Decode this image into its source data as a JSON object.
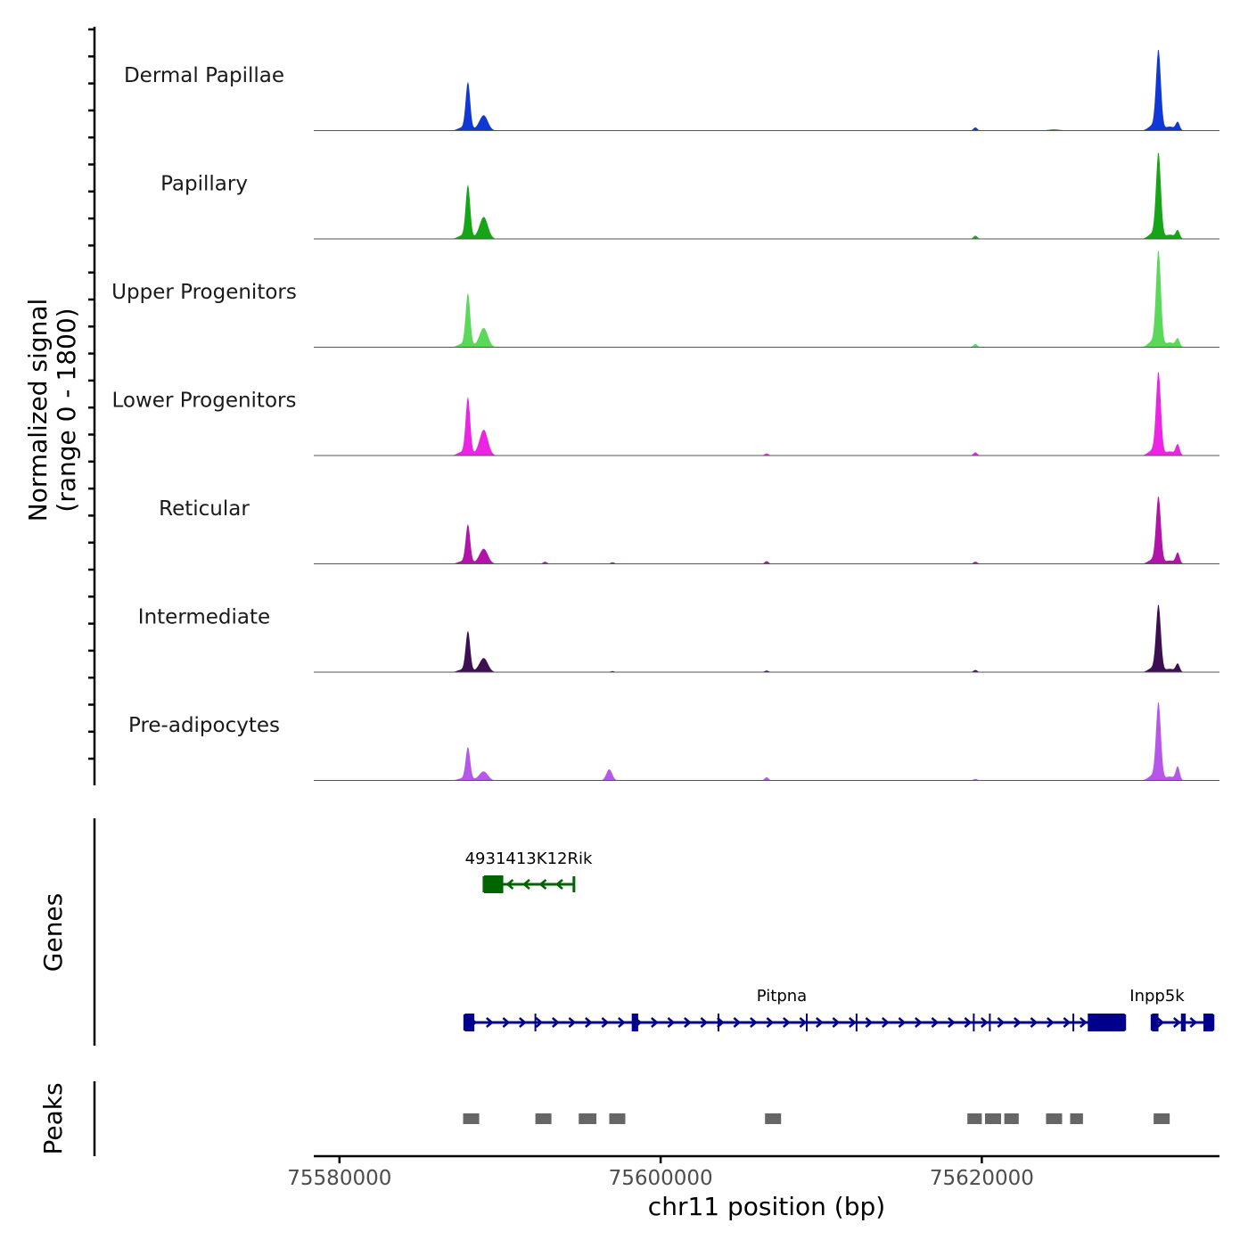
{
  "chart_data": {
    "type": "area",
    "title": "",
    "chromosome": "chr11",
    "xlabel": "chr11 position (bp)",
    "ylabel_line1": "Normalized signal",
    "ylabel_line2": "(range 0 - 1800)",
    "y_range": [
      0,
      1800
    ],
    "xlim": [
      75578400,
      75634800
    ],
    "x_ticks": [
      75580000,
      75600000,
      75620000
    ],
    "x_tick_labels": [
      "75580000",
      "75600000",
      "75620000"
    ],
    "baseline_color": "#555555",
    "tracks": [
      {
        "name": "Dermal Papillae",
        "color": "#1038d6",
        "peaks": [
          [
            75588000,
            900,
            140
          ],
          [
            75589000,
            260,
            250
          ],
          [
            75619600,
            60,
            120
          ],
          [
            75624500,
            20,
            400
          ],
          [
            75631000,
            1500,
            150
          ],
          [
            75632200,
            150,
            120
          ]
        ]
      },
      {
        "name": "Papillary",
        "color": "#16a516",
        "peaks": [
          [
            75588000,
            1000,
            140
          ],
          [
            75589000,
            380,
            250
          ],
          [
            75619600,
            60,
            120
          ],
          [
            75631000,
            1600,
            150
          ],
          [
            75632200,
            150,
            120
          ]
        ]
      },
      {
        "name": "Upper Progenitors",
        "color": "#5ad85a",
        "peaks": [
          [
            75588000,
            1000,
            140
          ],
          [
            75589000,
            330,
            250
          ],
          [
            75619600,
            60,
            120
          ],
          [
            75631000,
            1800,
            150
          ],
          [
            75632200,
            150,
            120
          ]
        ]
      },
      {
        "name": "Lower Progenitors",
        "color": "#ec24e4",
        "peaks": [
          [
            75588000,
            1080,
            140
          ],
          [
            75589000,
            450,
            250
          ],
          [
            75606600,
            40,
            120
          ],
          [
            75619600,
            60,
            120
          ],
          [
            75631000,
            1550,
            150
          ],
          [
            75632200,
            200,
            120
          ]
        ]
      },
      {
        "name": "Reticular",
        "color": "#b213a8",
        "peaks": [
          [
            75588000,
            730,
            140
          ],
          [
            75589000,
            260,
            250
          ],
          [
            75592800,
            40,
            120
          ],
          [
            75597000,
            30,
            120
          ],
          [
            75606600,
            50,
            120
          ],
          [
            75619600,
            40,
            120
          ],
          [
            75631000,
            1250,
            150
          ],
          [
            75632200,
            200,
            120
          ]
        ]
      },
      {
        "name": "Intermediate",
        "color": "#3b0f52",
        "peaks": [
          [
            75588000,
            760,
            140
          ],
          [
            75589000,
            240,
            250
          ],
          [
            75597000,
            20,
            120
          ],
          [
            75606600,
            30,
            120
          ],
          [
            75619600,
            40,
            120
          ],
          [
            75631000,
            1250,
            150
          ],
          [
            75632200,
            150,
            120
          ]
        ]
      },
      {
        "name": "Pre-adipocytes",
        "color": "#b657ea",
        "peaks": [
          [
            75588000,
            620,
            140
          ],
          [
            75589000,
            150,
            250
          ],
          [
            75596800,
            210,
            180
          ],
          [
            75606600,
            60,
            120
          ],
          [
            75619600,
            30,
            120
          ],
          [
            75631000,
            1450,
            150
          ],
          [
            75632200,
            250,
            120
          ]
        ]
      }
    ],
    "genes_label": "Genes",
    "genes": [
      {
        "name": "4931413K12Rik",
        "strand": "-",
        "color": "#006400",
        "start": 75589000,
        "end": 75594600,
        "exons": [
          [
            75589000,
            75590200
          ]
        ]
      },
      {
        "name": "Pitpna",
        "strand": "+",
        "color": "#00008b",
        "start": 75587800,
        "end": 75628900,
        "exons": [
          [
            75587800,
            75588400
          ],
          [
            75598200,
            75598600
          ],
          [
            75626600,
            75628900
          ]
        ],
        "introns_marks": [
          75592200,
          75603600,
          75609100,
          75612200,
          75619500,
          75620500,
          75625700
        ]
      },
      {
        "name": "Inpp5k",
        "strand": "+",
        "color": "#00008b",
        "start": 75630600,
        "end": 75634400,
        "exons": [
          [
            75630600,
            75631000
          ],
          [
            75632400,
            75632700
          ],
          [
            75633800,
            75634400
          ]
        ]
      }
    ],
    "peaks_label": "Peaks",
    "peak_color": "#666666",
    "peaks_regions": [
      [
        75587700,
        75588700
      ],
      [
        75592200,
        75593200
      ],
      [
        75594900,
        75596000
      ],
      [
        75596800,
        75597800
      ],
      [
        75606500,
        75607500
      ],
      [
        75619100,
        75620000
      ],
      [
        75620200,
        75621200
      ],
      [
        75621400,
        75622300
      ],
      [
        75624000,
        75625000
      ],
      [
        75625500,
        75626300
      ],
      [
        75630700,
        75631700
      ]
    ]
  }
}
